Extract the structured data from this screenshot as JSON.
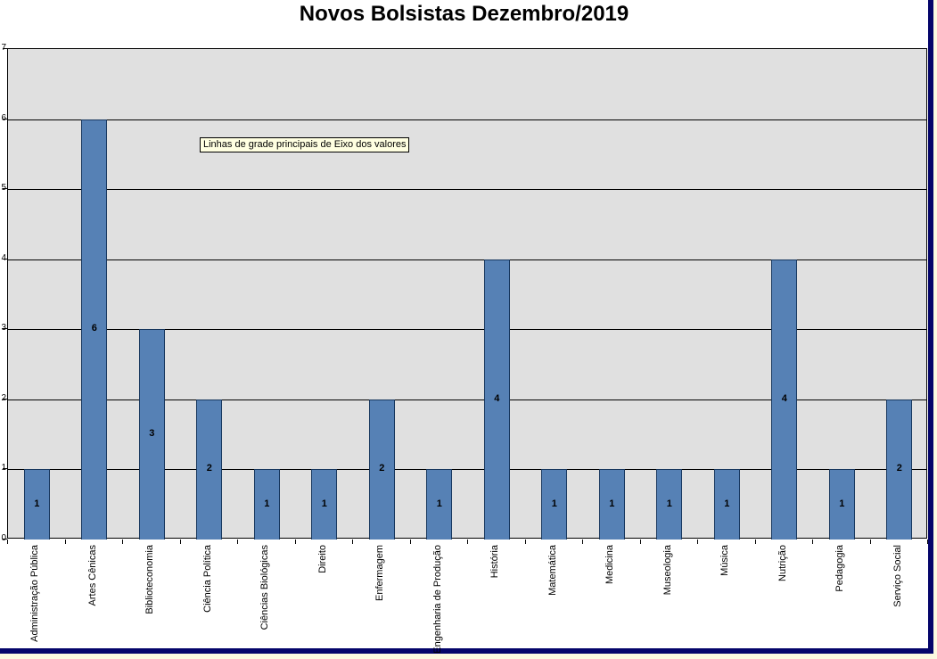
{
  "window": {
    "border_color": "#04046a",
    "desktop_color": "#fbf9e0",
    "chart_bg": "#ffffff"
  },
  "title": "Novos Bolsistas Dezembro/2019",
  "tooltip": {
    "text": "Linhas de grade principais de Eixo dos valores",
    "bg": "#ffffe1"
  },
  "chart_data": {
    "type": "bar",
    "title": "Novos Bolsistas Dezembro/2019",
    "categories": [
      "Administração Pública",
      "Artes Cênicas",
      "Biblioteconomia",
      "Ciência Política",
      "Ciências Biológicas",
      "Direito",
      "Enfermagem",
      "Engenharia de Produção",
      "História",
      "Matemática",
      "Medicina",
      "Museologia",
      "Música",
      "Nutrição",
      "Pedagogia",
      "Serviço Social"
    ],
    "values": [
      1,
      6,
      3,
      2,
      1,
      1,
      2,
      1,
      4,
      1,
      1,
      1,
      1,
      4,
      1,
      2
    ],
    "data_labels": "center",
    "xlabel": "",
    "ylabel": "",
    "ylim": [
      0,
      7
    ],
    "yticks": [
      0,
      1,
      2,
      3,
      4,
      5,
      6,
      7
    ],
    "grid": "horizontal-major",
    "legend": "none",
    "colors": {
      "bar_fill": "#5681b5",
      "bar_border": "#17375e",
      "plot_bg": "#e0e0e0",
      "gridline": "#000000",
      "axis": "#000000",
      "label_text": "#000000"
    }
  }
}
